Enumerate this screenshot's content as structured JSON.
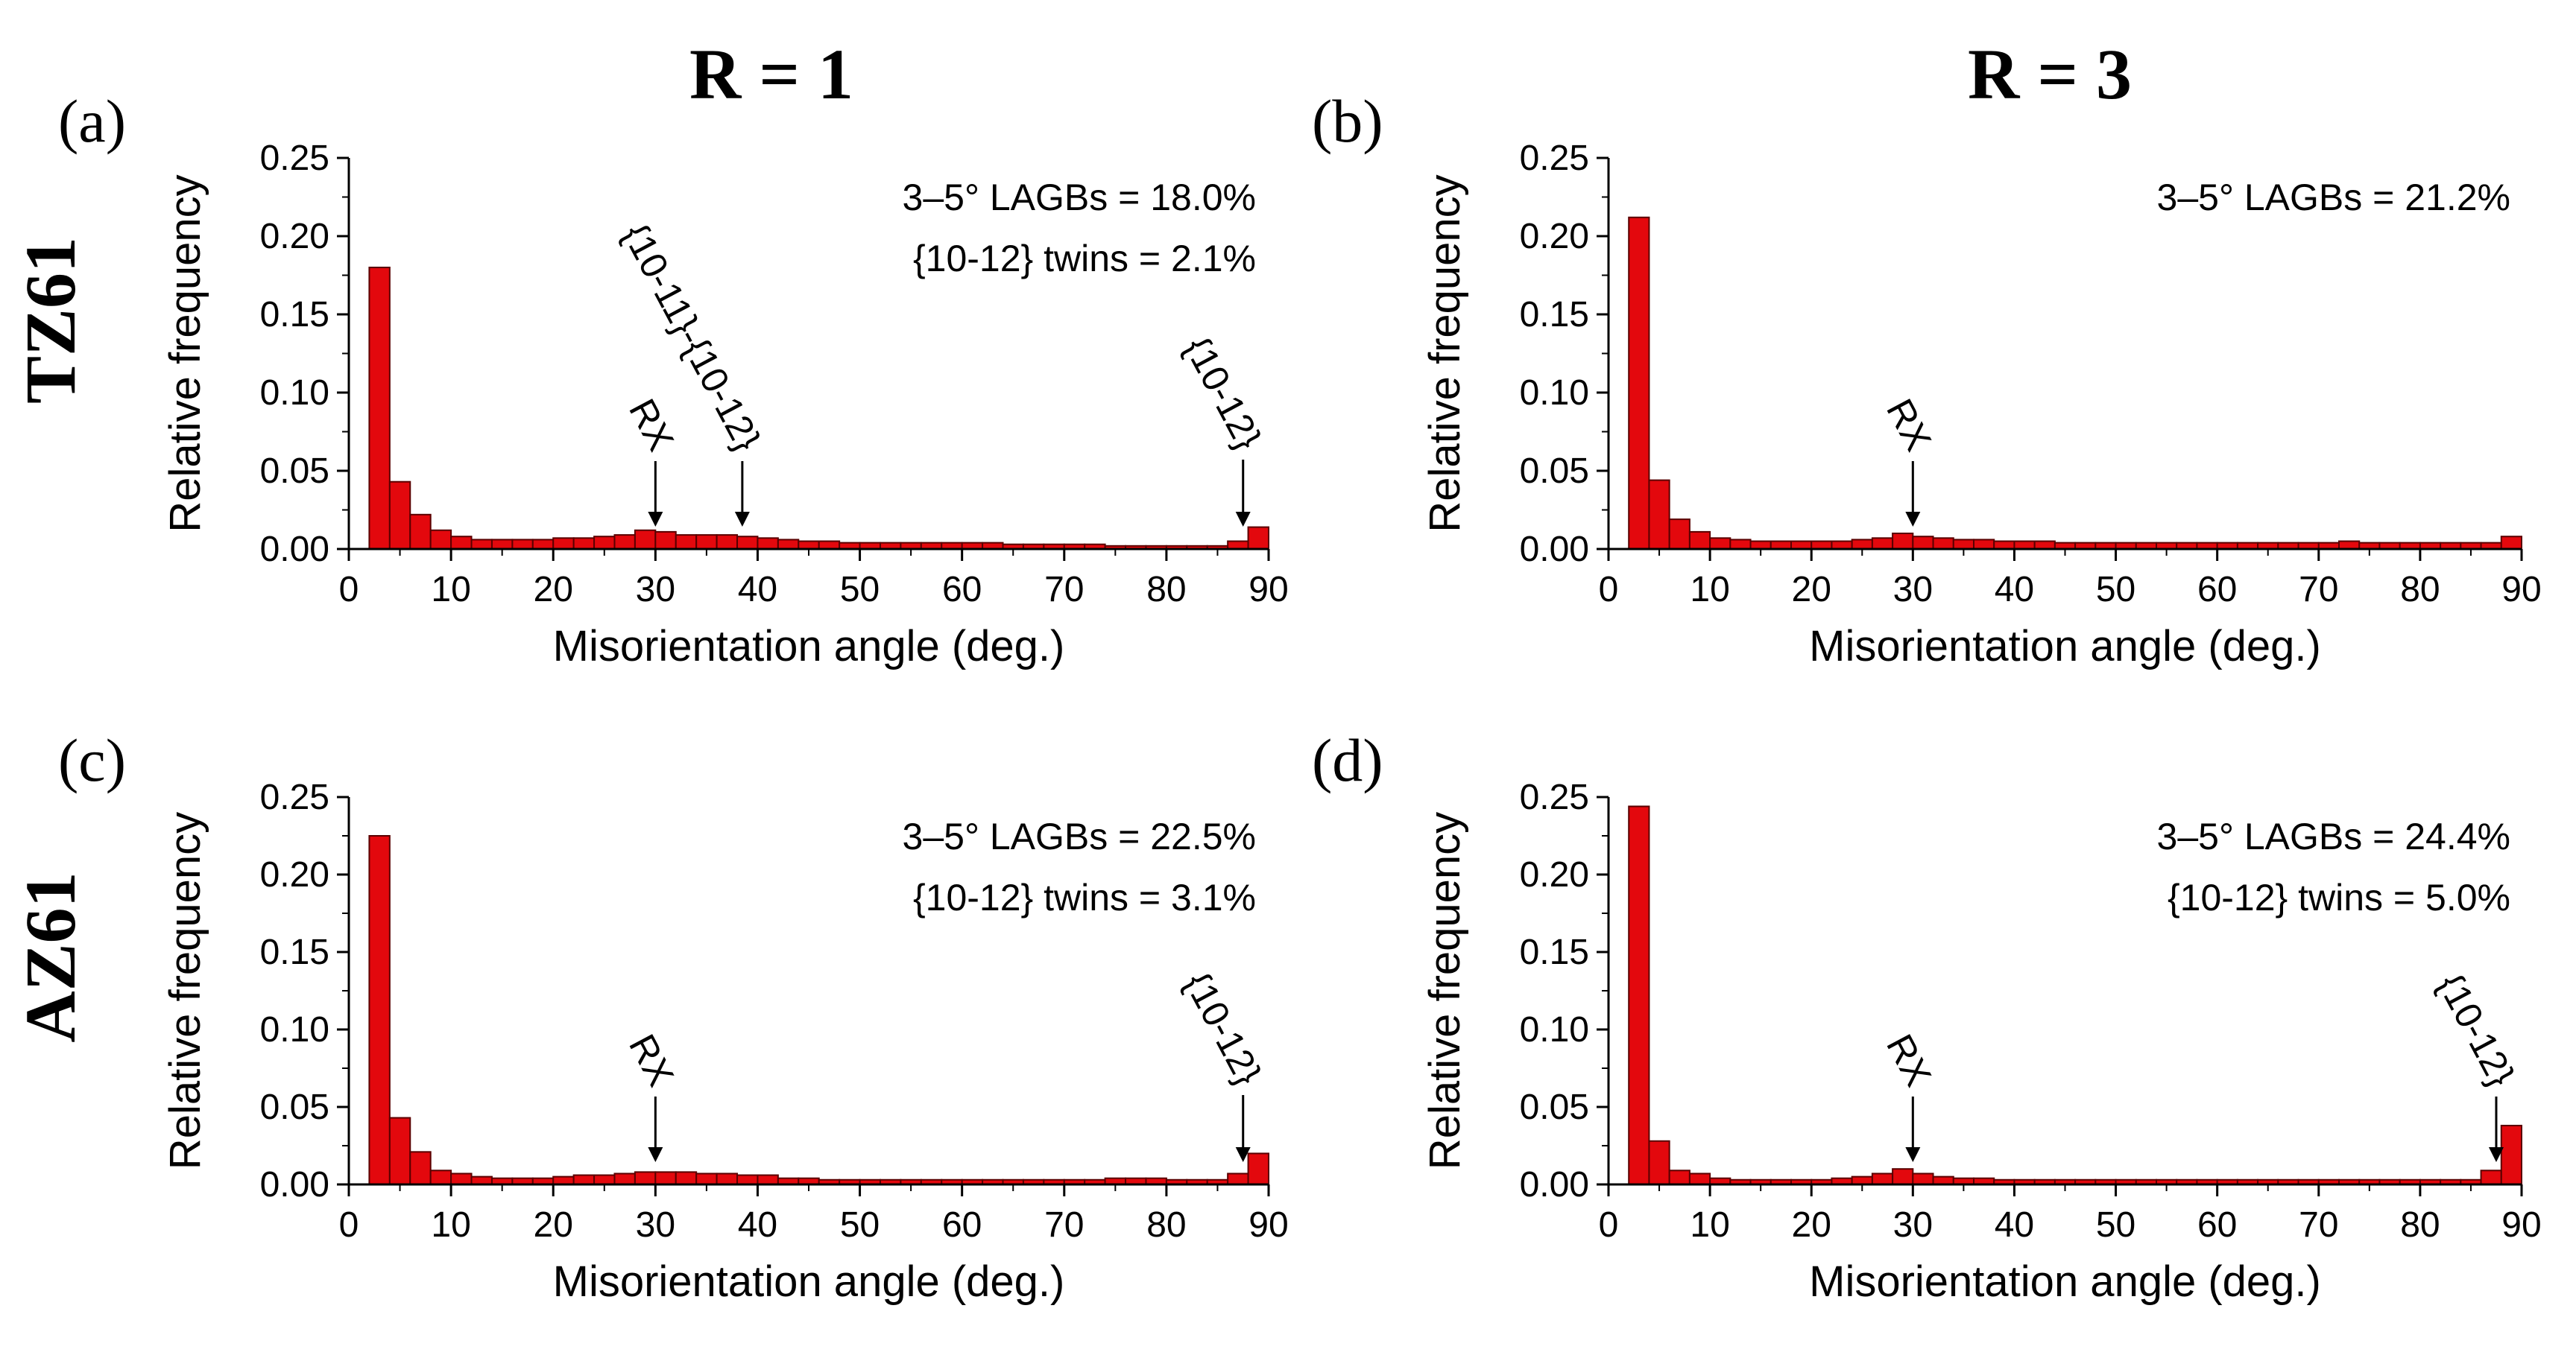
{
  "column_headers": [
    "R = 1",
    "R = 3"
  ],
  "row_headers": [
    "TZ61",
    "AZ61"
  ],
  "chart_data": [
    {
      "panel": "(a)",
      "type": "bar",
      "xlabel": "Misorientation angle (deg.)",
      "ylabel": "Relative frequency",
      "xlim": [
        0,
        90
      ],
      "ylim": [
        0,
        0.25
      ],
      "xticks": [
        "0",
        "10",
        "20",
        "30",
        "40",
        "50",
        "60",
        "70",
        "80",
        "90"
      ],
      "yticks": [
        "0.00",
        "0.05",
        "0.10",
        "0.15",
        "0.20",
        "0.25"
      ],
      "bin_width": 2,
      "bin_start": 2,
      "values": [
        0.18,
        0.043,
        0.022,
        0.012,
        0.008,
        0.006,
        0.006,
        0.006,
        0.006,
        0.007,
        0.007,
        0.008,
        0.009,
        0.012,
        0.011,
        0.009,
        0.009,
        0.009,
        0.008,
        0.007,
        0.006,
        0.005,
        0.005,
        0.004,
        0.004,
        0.004,
        0.004,
        0.004,
        0.004,
        0.004,
        0.004,
        0.003,
        0.003,
        0.003,
        0.003,
        0.003,
        0.002,
        0.002,
        0.002,
        0.002,
        0.002,
        0.002,
        0.005,
        0.014
      ],
      "stats": [
        "3–5° LAGBs = 18.0%",
        "{10-12} twins = 2.1%"
      ],
      "annotations": [
        {
          "text": "RX",
          "x": 30
        },
        {
          "text": "{10-11}-{10-12}",
          "x": 38.5
        },
        {
          "text": "{10-12}",
          "x": 87.5
        }
      ]
    },
    {
      "panel": "(b)",
      "type": "bar",
      "xlabel": "Misorientation angle (deg.)",
      "ylabel": "Relative frequency",
      "xlim": [
        0,
        90
      ],
      "ylim": [
        0,
        0.25
      ],
      "xticks": [
        "0",
        "10",
        "20",
        "30",
        "40",
        "50",
        "60",
        "70",
        "80",
        "90"
      ],
      "yticks": [
        "0.00",
        "0.05",
        "0.10",
        "0.15",
        "0.20",
        "0.25"
      ],
      "bin_width": 2,
      "bin_start": 2,
      "values": [
        0.212,
        0.044,
        0.019,
        0.011,
        0.007,
        0.006,
        0.005,
        0.005,
        0.005,
        0.005,
        0.005,
        0.006,
        0.007,
        0.01,
        0.008,
        0.007,
        0.006,
        0.006,
        0.005,
        0.005,
        0.005,
        0.004,
        0.004,
        0.004,
        0.004,
        0.004,
        0.004,
        0.004,
        0.004,
        0.004,
        0.004,
        0.004,
        0.004,
        0.004,
        0.004,
        0.005,
        0.004,
        0.004,
        0.004,
        0.004,
        0.004,
        0.004,
        0.004,
        0.008
      ],
      "stats": [
        "3–5° LAGBs = 21.2%"
      ],
      "annotations": [
        {
          "text": "RX",
          "x": 30
        }
      ]
    },
    {
      "panel": "(c)",
      "type": "bar",
      "xlabel": "Misorientation angle (deg.)",
      "ylabel": "Relative frequency",
      "xlim": [
        0,
        90
      ],
      "ylim": [
        0,
        0.25
      ],
      "xticks": [
        "0",
        "10",
        "20",
        "30",
        "40",
        "50",
        "60",
        "70",
        "80",
        "90"
      ],
      "yticks": [
        "0.00",
        "0.05",
        "0.10",
        "0.15",
        "0.20",
        "0.25"
      ],
      "bin_width": 2,
      "bin_start": 2,
      "values": [
        0.225,
        0.043,
        0.021,
        0.009,
        0.007,
        0.005,
        0.004,
        0.004,
        0.004,
        0.005,
        0.006,
        0.006,
        0.007,
        0.008,
        0.008,
        0.008,
        0.007,
        0.007,
        0.006,
        0.006,
        0.004,
        0.004,
        0.003,
        0.003,
        0.003,
        0.003,
        0.003,
        0.003,
        0.003,
        0.003,
        0.003,
        0.003,
        0.003,
        0.003,
        0.003,
        0.003,
        0.004,
        0.004,
        0.004,
        0.003,
        0.003,
        0.003,
        0.007,
        0.02
      ],
      "stats": [
        "3–5° LAGBs = 22.5%",
        "{10-12} twins = 3.1%"
      ],
      "annotations": [
        {
          "text": "RX",
          "x": 30
        },
        {
          "text": "{10-12}",
          "x": 87.5
        }
      ]
    },
    {
      "panel": "(d)",
      "type": "bar",
      "xlabel": "Misorientation angle (deg.)",
      "ylabel": "Relative frequency",
      "xlim": [
        0,
        90
      ],
      "ylim": [
        0,
        0.25
      ],
      "xticks": [
        "0",
        "10",
        "20",
        "30",
        "40",
        "50",
        "60",
        "70",
        "80",
        "90"
      ],
      "yticks": [
        "0.00",
        "0.05",
        "0.10",
        "0.15",
        "0.20",
        "0.25"
      ],
      "bin_width": 2,
      "bin_start": 2,
      "values": [
        0.244,
        0.028,
        0.009,
        0.007,
        0.004,
        0.003,
        0.003,
        0.003,
        0.003,
        0.003,
        0.004,
        0.005,
        0.007,
        0.01,
        0.007,
        0.005,
        0.004,
        0.004,
        0.003,
        0.003,
        0.003,
        0.003,
        0.003,
        0.003,
        0.003,
        0.003,
        0.003,
        0.003,
        0.003,
        0.003,
        0.003,
        0.003,
        0.003,
        0.003,
        0.003,
        0.003,
        0.003,
        0.003,
        0.003,
        0.003,
        0.003,
        0.003,
        0.009,
        0.038
      ],
      "stats": [
        "3–5° LAGBs = 24.4%",
        "{10-12} twins = 5.0%"
      ],
      "annotations": [
        {
          "text": "RX",
          "x": 30
        },
        {
          "text": "{10-12}",
          "x": 87.5
        }
      ]
    }
  ],
  "colors": {
    "bar_fill": "#e3080d",
    "bar_edge": "#5a0000",
    "axis": "#000000"
  }
}
